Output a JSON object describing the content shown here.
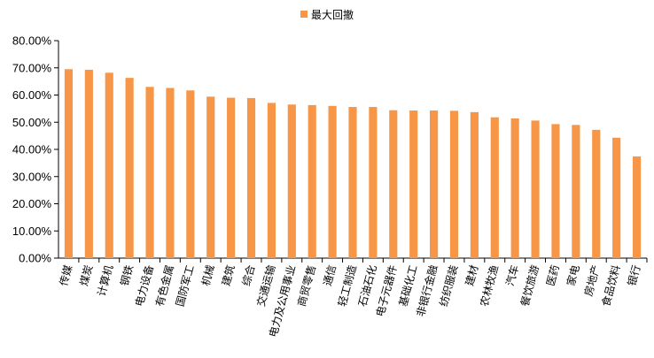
{
  "chart_data": {
    "type": "bar",
    "series": [
      {
        "name": "最大回撤",
        "color": "#F79646",
        "values": [
          0.695,
          0.693,
          0.682,
          0.663,
          0.63,
          0.626,
          0.617,
          0.594,
          0.59,
          0.589,
          0.571,
          0.565,
          0.563,
          0.56,
          0.556,
          0.556,
          0.544,
          0.543,
          0.543,
          0.542,
          0.537,
          0.518,
          0.514,
          0.506,
          0.493,
          0.49,
          0.472,
          0.443,
          0.374
        ]
      }
    ],
    "categories": [
      "传媒",
      "煤炭",
      "计算机",
      "钢铁",
      "电力设备",
      "有色金属",
      "国防军工",
      "机械",
      "建筑",
      "综合",
      "交通运输",
      "电力及公用事业",
      "商贸零售",
      "通信",
      "轻工制造",
      "石油石化",
      "电子元器件",
      "基础化工",
      "非银行金融",
      "纺织服装",
      "建材",
      "农林牧渔",
      "汽车",
      "餐饮旅游",
      "医药",
      "家电",
      "房地产",
      "食品饮料",
      "银行"
    ],
    "ylim": [
      0,
      0.8
    ],
    "y_ticks": [
      "0.00%",
      "10.00%",
      "20.00%",
      "30.00%",
      "40.00%",
      "50.00%",
      "60.00%",
      "70.00%",
      "80.00%"
    ],
    "legend_position": "top-center",
    "grid": false,
    "title": "",
    "xlabel": "",
    "ylabel": ""
  }
}
